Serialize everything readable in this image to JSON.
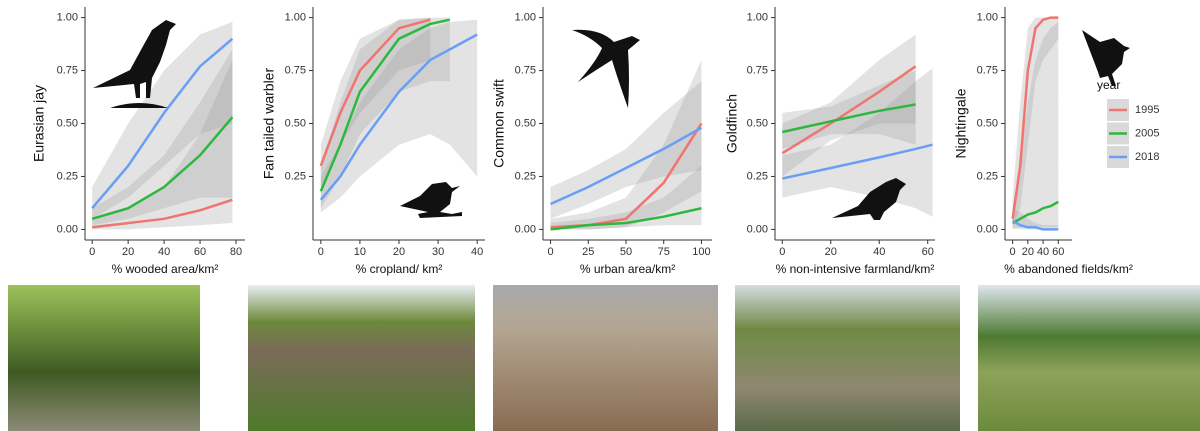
{
  "legend": {
    "title": "year",
    "items": [
      {
        "name": "1995",
        "color": "#f07470"
      },
      {
        "name": "2005",
        "color": "#2db83d"
      },
      {
        "name": "2018",
        "color": "#6a9ef5"
      }
    ]
  },
  "chart_data": [
    {
      "type": "line",
      "ylabel": "Eurasian jay",
      "xlabel": "% wooded area/km²",
      "x": [
        0,
        20,
        40,
        60,
        78
      ],
      "series": [
        {
          "values": [
            0.01,
            0.03,
            0.05,
            0.09,
            0.14
          ],
          "lower": [
            0,
            0,
            0.01,
            0.02,
            0.03
          ],
          "upper": [
            0.05,
            0.1,
            0.2,
            0.45,
            0.8
          ]
        },
        {
          "values": [
            0.05,
            0.1,
            0.2,
            0.35,
            0.53
          ],
          "lower": [
            0.02,
            0.05,
            0.1,
            0.15,
            0.15
          ],
          "upper": [
            0.1,
            0.2,
            0.35,
            0.6,
            0.85
          ]
        },
        {
          "values": [
            0.1,
            0.3,
            0.55,
            0.77,
            0.9
          ],
          "lower": [
            0.05,
            0.15,
            0.3,
            0.45,
            0.5
          ],
          "upper": [
            0.2,
            0.5,
            0.75,
            0.92,
            0.98
          ]
        }
      ],
      "xlim": [
        -4,
        85
      ],
      "ylim": [
        -0.05,
        1.05
      ],
      "xticks": [
        0,
        20,
        40,
        60,
        80
      ],
      "yticks": [
        {
          "value": 0,
          "label": "0.00"
        },
        {
          "value": 0.25,
          "label": "0.25"
        },
        {
          "value": 0.5,
          "label": "0.50"
        },
        {
          "value": 0.75,
          "label": "0.75"
        },
        {
          "value": 1,
          "label": "1.00"
        }
      ]
    },
    {
      "type": "line",
      "ylabel": "Fan tailed warbler",
      "xlabel": "% cropland/ km²",
      "x": [
        0,
        5,
        10,
        20,
        28,
        33,
        40
      ],
      "series": [
        {
          "values": [
            0.3,
            0.55,
            0.75,
            0.95,
            0.99,
            null,
            null
          ],
          "lower": [
            0.2,
            0.4,
            0.55,
            0.75,
            0.8,
            null,
            null
          ],
          "upper": [
            0.4,
            0.7,
            0.9,
            0.99,
            1,
            null,
            null
          ]
        },
        {
          "values": [
            0.18,
            0.4,
            0.65,
            0.9,
            0.97,
            0.99,
            null
          ],
          "lower": [
            0.1,
            0.25,
            0.45,
            0.65,
            0.7,
            0.7,
            null
          ],
          "upper": [
            0.3,
            0.6,
            0.85,
            0.99,
            1,
            1,
            null
          ]
        },
        {
          "values": [
            0.14,
            0.25,
            0.4,
            0.65,
            0.8,
            0.85,
            0.92
          ],
          "lower": [
            0.08,
            0.15,
            0.25,
            0.4,
            0.45,
            0.4,
            0.25
          ],
          "upper": [
            0.25,
            0.4,
            0.6,
            0.85,
            0.95,
            0.98,
            0.99
          ]
        }
      ],
      "xlim": [
        -2,
        42
      ],
      "ylim": [
        -0.05,
        1.05
      ],
      "xticks": [
        0,
        10,
        20,
        30,
        40
      ],
      "yticks": [
        {
          "value": 0.25,
          "label": "0.25"
        },
        {
          "value": 0.5,
          "label": "0.50"
        },
        {
          "value": 0.75,
          "label": "0.75"
        },
        {
          "value": 1,
          "label": "1.00"
        }
      ]
    },
    {
      "type": "line",
      "ylabel": "Common swift",
      "xlabel": "% urban area/km²",
      "x": [
        0,
        25,
        50,
        75,
        100
      ],
      "series": [
        {
          "values": [
            0.01,
            0.02,
            0.05,
            0.22,
            0.5
          ],
          "lower": [
            0,
            0,
            0.01,
            0.08,
            0.18
          ],
          "upper": [
            0.05,
            0.08,
            0.15,
            0.4,
            0.8
          ]
        },
        {
          "values": [
            0,
            0.02,
            0.03,
            0.06,
            0.1
          ],
          "lower": [
            0,
            0,
            0.01,
            0.02,
            0.02
          ],
          "upper": [
            0.03,
            0.05,
            0.08,
            0.15,
            0.3
          ]
        },
        {
          "values": [
            0.12,
            0.2,
            0.29,
            0.38,
            0.48
          ],
          "lower": [
            0.05,
            0.12,
            0.2,
            0.25,
            0.28
          ],
          "upper": [
            0.2,
            0.28,
            0.38,
            0.55,
            0.7
          ]
        }
      ],
      "xlim": [
        -5,
        107
      ],
      "ylim": [
        -0.05,
        1.05
      ],
      "xticks": [
        0,
        25,
        50,
        75,
        100
      ],
      "yticks": [
        {
          "value": 0,
          "label": "0.00"
        },
        {
          "value": 0.25,
          "label": "0.25"
        },
        {
          "value": 0.5,
          "label": "0.50"
        },
        {
          "value": 0.75,
          "label": "0.75"
        },
        {
          "value": 1,
          "label": "1.00"
        }
      ]
    },
    {
      "type": "line",
      "ylabel": "Goldfinch",
      "xlabel": "% non-intensive farmland/km²",
      "x": [
        0,
        20,
        40,
        55,
        62
      ],
      "series": [
        {
          "values": [
            0.36,
            0.5,
            0.65,
            0.77,
            null
          ],
          "lower": [
            0.25,
            0.42,
            0.5,
            0.5,
            null
          ],
          "upper": [
            0.5,
            0.6,
            0.8,
            0.92,
            null
          ]
        },
        {
          "values": [
            0.46,
            0.51,
            0.56,
            0.59,
            null
          ],
          "lower": [
            0.38,
            0.45,
            0.45,
            0.4,
            null
          ],
          "upper": [
            0.55,
            0.58,
            0.68,
            0.75,
            null
          ]
        },
        {
          "values": [
            0.24,
            0.29,
            0.34,
            0.38,
            0.4
          ],
          "lower": [
            0.15,
            0.2,
            0.15,
            0.1,
            0.06
          ],
          "upper": [
            0.35,
            0.4,
            0.55,
            0.7,
            0.76
          ]
        }
      ],
      "xlim": [
        -3,
        63
      ],
      "ylim": [
        -0.05,
        1.05
      ],
      "xticks": [
        0,
        20,
        40,
        60
      ],
      "yticks": [
        {
          "value": 0,
          "label": "0.00"
        },
        {
          "value": 0.25,
          "label": "0.25"
        },
        {
          "value": 0.5,
          "label": "0.50"
        },
        {
          "value": 0.75,
          "label": "0.75"
        },
        {
          "value": 1,
          "label": "1.00"
        }
      ]
    },
    {
      "type": "line",
      "ylabel": "Nightingale",
      "xlabel": "% abandoned fields/km²",
      "x": [
        0,
        10,
        20,
        30,
        40,
        50,
        60
      ],
      "series": [
        {
          "values": [
            0.05,
            0.3,
            0.75,
            0.95,
            0.99,
            1,
            1
          ],
          "lower": [
            0.01,
            0.1,
            0.4,
            0.7,
            0.8,
            0.85,
            0.9
          ],
          "upper": [
            0.15,
            0.6,
            0.95,
            1,
            1,
            1,
            1
          ]
        },
        {
          "values": [
            0.03,
            0.05,
            0.07,
            0.08,
            0.1,
            0.11,
            0.13
          ],
          "lower": [
            0,
            0.01,
            0.01,
            0.01,
            0.01,
            0.01,
            0.01
          ],
          "upper": [
            0.1,
            0.3,
            0.6,
            0.8,
            0.9,
            0.95,
            0.98
          ]
        },
        {
          "values": [
            0.04,
            0.02,
            0.01,
            0.01,
            0,
            0,
            0
          ],
          "lower": [
            0.01,
            0,
            0,
            0,
            0,
            0,
            0
          ],
          "upper": [
            0.1,
            0.08,
            0.05,
            0.03,
            0.02,
            0.02,
            0.02
          ]
        }
      ],
      "xlim": [
        -10,
        78
      ],
      "ylim": [
        -0.05,
        1.05
      ],
      "xticks": [
        0,
        20,
        40,
        60
      ],
      "yticks": [
        {
          "value": 0,
          "label": "0.00"
        },
        {
          "value": 0.25,
          "label": "0.25"
        },
        {
          "value": 0.5,
          "label": "0.50"
        },
        {
          "value": 0.75,
          "label": "0.75"
        },
        {
          "value": 1,
          "label": "1.00"
        }
      ]
    }
  ]
}
